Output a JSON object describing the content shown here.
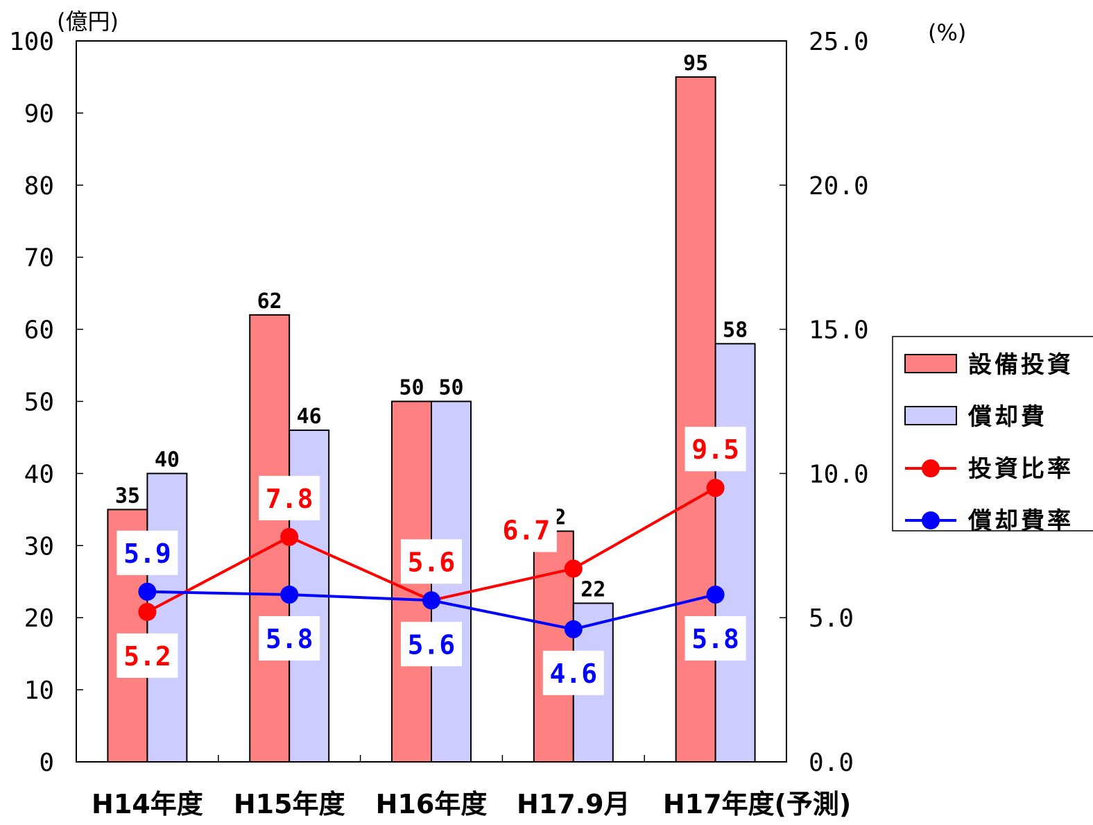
{
  "chart_data": {
    "type": "bar",
    "categories": [
      "H14年度",
      "H15年度",
      "H16年度",
      "H17.9月",
      "H17年度(予測)"
    ],
    "y_left_unit": "(億円)",
    "y_right_unit": "(%)",
    "y_left_range": [
      0,
      100
    ],
    "y_right_range": [
      0.0,
      25.0
    ],
    "y_left_ticks": [
      "0",
      "10",
      "20",
      "30",
      "40",
      "50",
      "60",
      "70",
      "80",
      "90",
      "100"
    ],
    "y_right_ticks": [
      "0.0",
      "5.0",
      "10.0",
      "15.0",
      "20.0",
      "25.0"
    ],
    "series": [
      {
        "name": "設備投資",
        "kind": "bar",
        "axis": "left",
        "color": "#ff8080",
        "values": [
          35,
          62,
          50,
          32,
          95
        ],
        "labels": [
          "35",
          "62",
          "50",
          "32",
          "95"
        ]
      },
      {
        "name": "償却費",
        "kind": "bar",
        "axis": "left",
        "color": "#ccccff",
        "values": [
          40,
          46,
          50,
          22,
          58
        ],
        "labels": [
          "40",
          "46",
          "50",
          "22",
          "58"
        ]
      },
      {
        "name": "投資比率",
        "kind": "line",
        "axis": "right",
        "color": "#ff0000",
        "values": [
          5.2,
          7.8,
          5.6,
          6.7,
          9.5
        ],
        "labels": [
          "5.2",
          "7.8",
          "5.6",
          "6.7",
          "9.5"
        ]
      },
      {
        "name": "償却費率",
        "kind": "line",
        "axis": "right",
        "color": "#0000ff",
        "values": [
          5.9,
          5.8,
          5.6,
          4.6,
          5.8
        ],
        "labels": [
          "5.9",
          "5.8",
          "5.6",
          "4.6",
          "5.8"
        ]
      }
    ],
    "legend_position": "right",
    "grid": false
  }
}
